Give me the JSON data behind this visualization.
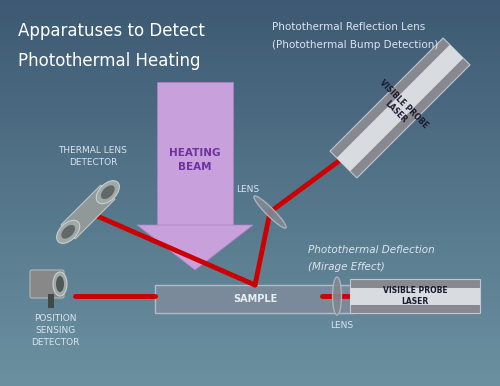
{
  "title1": "Apparatuses to Detect",
  "title2": "Photothermal Heating",
  "label_reflection": "Photothermal Reflection Lens",
  "label_reflection2": "(Photothermal Bump Detection)",
  "label_deflection": "Photothermal Deflection",
  "label_deflection2": "(Mirage Effect)",
  "label_thermal": "THERMAL LENS\nDETECTOR",
  "label_position": "POSITION\nSENSING\nDETECTOR",
  "label_heating": "HEATING\nBEAM",
  "label_lens_top": "LENS",
  "label_lens_bot": "LENS",
  "label_sample": "SAMPLE",
  "label_laser_top": "VISIBLE PROBE\nLASER",
  "label_laser_bot": "VISIBLE PROBE\nLASER",
  "red_color": "#cc0000",
  "white": "#ffffff",
  "light_text": "#dde4ee",
  "dark_text": "#1a1a2e"
}
